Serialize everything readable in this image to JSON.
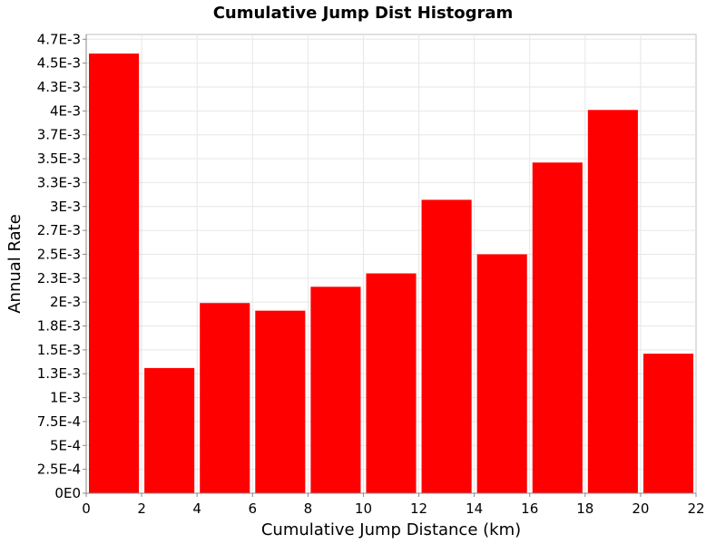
{
  "chart_data": {
    "type": "bar",
    "title": "Cumulative Jump Dist Histogram",
    "xlabel": "Cumulative Jump Distance (km)",
    "ylabel": "Annual Rate",
    "xlim": [
      0,
      22
    ],
    "ylim": [
      0,
      0.0048
    ],
    "x_ticks": [
      0,
      2,
      4,
      6,
      8,
      10,
      12,
      14,
      16,
      18,
      20,
      22
    ],
    "y_ticks": [
      {
        "value": 0,
        "label": "0E0"
      },
      {
        "value": 0.00025,
        "label": "2.5E-4"
      },
      {
        "value": 0.0005,
        "label": "5E-4"
      },
      {
        "value": 0.00075,
        "label": "7.5E-4"
      },
      {
        "value": 0.001,
        "label": "1E-3"
      },
      {
        "value": 0.00125,
        "label": "1.3E-3"
      },
      {
        "value": 0.0015,
        "label": "1.5E-3"
      },
      {
        "value": 0.00175,
        "label": "1.8E-3"
      },
      {
        "value": 0.002,
        "label": "2E-3"
      },
      {
        "value": 0.00225,
        "label": "2.3E-3"
      },
      {
        "value": 0.0025,
        "label": "2.5E-3"
      },
      {
        "value": 0.00275,
        "label": "2.7E-3"
      },
      {
        "value": 0.003,
        "label": "3E-3"
      },
      {
        "value": 0.00325,
        "label": "3.3E-3"
      },
      {
        "value": 0.0035,
        "label": "3.5E-3"
      },
      {
        "value": 0.00375,
        "label": "3.7E-3"
      },
      {
        "value": 0.004,
        "label": "4E-3"
      },
      {
        "value": 0.00425,
        "label": "4.3E-3"
      },
      {
        "value": 0.0045,
        "label": "4.5E-3"
      },
      {
        "value": 0.00475,
        "label": "4.7E-3"
      }
    ],
    "bins": [
      {
        "x_start": 0,
        "x_end": 2,
        "value": 0.0046
      },
      {
        "x_start": 2,
        "x_end": 4,
        "value": 0.00131
      },
      {
        "x_start": 4,
        "x_end": 6,
        "value": 0.00199
      },
      {
        "x_start": 6,
        "x_end": 8,
        "value": 0.00191
      },
      {
        "x_start": 8,
        "x_end": 10,
        "value": 0.00216
      },
      {
        "x_start": 10,
        "x_end": 12,
        "value": 0.0023
      },
      {
        "x_start": 12,
        "x_end": 14,
        "value": 0.00307
      },
      {
        "x_start": 14,
        "x_end": 16,
        "value": 0.0025
      },
      {
        "x_start": 16,
        "x_end": 18,
        "value": 0.00346
      },
      {
        "x_start": 18,
        "x_end": 20,
        "value": 0.00401
      },
      {
        "x_start": 20,
        "x_end": 22,
        "value": 0.00146
      }
    ],
    "grid": true,
    "bar_color": "#ff0000"
  }
}
